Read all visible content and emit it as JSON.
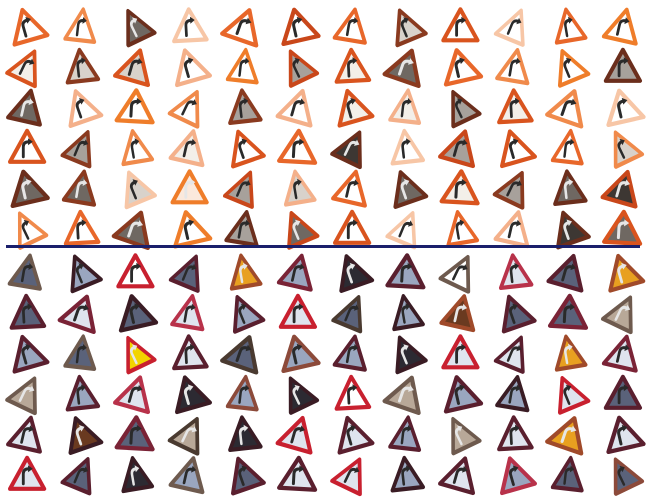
{
  "figure": {
    "columns": 12,
    "rows_per_panel": 6,
    "sign_symbol": "curve-right-icon",
    "divider_color": "#1a1f6b"
  },
  "top_panel": {
    "palette": {
      "border": [
        "#e8672a",
        "#d9541e",
        "#f08a4b",
        "#f4b08a",
        "#c9471a",
        "#8a3a1f",
        "#6b2e1c",
        "#f7c6a6",
        "#ef7d2a"
      ],
      "fill": [
        "#ffffff",
        "#f3efe9",
        "#d8d2cb",
        "#a7a19b",
        "#6f6862",
        "#3d3733",
        "#fbe9dc"
      ]
    },
    "cells": [
      [
        [
          0,
          0
        ],
        [
          2,
          0
        ],
        [
          6,
          4
        ],
        [
          7,
          0
        ],
        [
          0,
          0
        ],
        [
          4,
          0
        ],
        [
          0,
          0
        ],
        [
          5,
          2
        ],
        [
          1,
          0
        ],
        [
          7,
          0
        ],
        [
          0,
          0
        ],
        [
          8,
          0
        ]
      ],
      [
        [
          1,
          1
        ],
        [
          5,
          2
        ],
        [
          1,
          2
        ],
        [
          3,
          0
        ],
        [
          8,
          0
        ],
        [
          4,
          3
        ],
        [
          1,
          1
        ],
        [
          5,
          4
        ],
        [
          0,
          0
        ],
        [
          2,
          0
        ],
        [
          8,
          0
        ],
        [
          6,
          3
        ]
      ],
      [
        [
          6,
          4
        ],
        [
          3,
          0
        ],
        [
          8,
          0
        ],
        [
          2,
          0
        ],
        [
          5,
          3
        ],
        [
          3,
          0
        ],
        [
          1,
          1
        ],
        [
          3,
          1
        ],
        [
          6,
          3
        ],
        [
          1,
          1
        ],
        [
          2,
          0
        ],
        [
          7,
          0
        ]
      ],
      [
        [
          1,
          0
        ],
        [
          5,
          3
        ],
        [
          2,
          0
        ],
        [
          3,
          1
        ],
        [
          1,
          0
        ],
        [
          0,
          0
        ],
        [
          6,
          5
        ],
        [
          7,
          0
        ],
        [
          4,
          3
        ],
        [
          1,
          0
        ],
        [
          0,
          0
        ],
        [
          2,
          2
        ]
      ],
      [
        [
          6,
          4
        ],
        [
          5,
          4
        ],
        [
          7,
          2
        ],
        [
          8,
          6
        ],
        [
          4,
          3
        ],
        [
          3,
          2
        ],
        [
          0,
          0
        ],
        [
          6,
          4
        ],
        [
          1,
          1
        ],
        [
          5,
          3
        ],
        [
          6,
          4
        ],
        [
          4,
          5
        ]
      ],
      [
        [
          2,
          0
        ],
        [
          0,
          0
        ],
        [
          5,
          4
        ],
        [
          8,
          0
        ],
        [
          6,
          3
        ],
        [
          4,
          4
        ],
        [
          1,
          0
        ],
        [
          7,
          0
        ],
        [
          0,
          0
        ],
        [
          3,
          0
        ],
        [
          6,
          5
        ],
        [
          1,
          4
        ]
      ]
    ]
  },
  "bottom_panel": {
    "palette": {
      "border": [
        "#5a1f2e",
        "#7a2336",
        "#c8202f",
        "#3a1c24",
        "#8c4a3a",
        "#a04a2a",
        "#b8324a",
        "#4a3a30",
        "#6e5a4e"
      ],
      "fill": [
        "#ffffff",
        "#dfe4ee",
        "#9aa6bf",
        "#5a627a",
        "#2c2a32",
        "#e8a020",
        "#f2d400",
        "#b8a898",
        "#6a3a20"
      ]
    },
    "cells": [
      [
        [
          8,
          3
        ],
        [
          3,
          2
        ],
        [
          2,
          0
        ],
        [
          0,
          3
        ],
        [
          5,
          5
        ],
        [
          1,
          2
        ],
        [
          3,
          4
        ],
        [
          0,
          2
        ],
        [
          8,
          0
        ],
        [
          6,
          1
        ],
        [
          0,
          3
        ],
        [
          5,
          5
        ]
      ],
      [
        [
          0,
          3
        ],
        [
          1,
          1
        ],
        [
          3,
          3
        ],
        [
          6,
          1
        ],
        [
          0,
          2
        ],
        [
          2,
          1
        ],
        [
          7,
          3
        ],
        [
          3,
          2
        ],
        [
          5,
          8
        ],
        [
          0,
          3
        ],
        [
          1,
          3
        ],
        [
          8,
          7
        ]
      ],
      [
        [
          0,
          2
        ],
        [
          8,
          3
        ],
        [
          2,
          6
        ],
        [
          0,
          1
        ],
        [
          7,
          3
        ],
        [
          4,
          2
        ],
        [
          0,
          2
        ],
        [
          3,
          4
        ],
        [
          2,
          1
        ],
        [
          0,
          1
        ],
        [
          5,
          5
        ],
        [
          1,
          1
        ]
      ],
      [
        [
          8,
          7
        ],
        [
          0,
          2
        ],
        [
          6,
          1
        ],
        [
          3,
          4
        ],
        [
          4,
          2
        ],
        [
          3,
          4
        ],
        [
          2,
          0
        ],
        [
          8,
          7
        ],
        [
          0,
          2
        ],
        [
          3,
          2
        ],
        [
          2,
          1
        ],
        [
          0,
          3
        ]
      ],
      [
        [
          0,
          1
        ],
        [
          3,
          8
        ],
        [
          1,
          3
        ],
        [
          7,
          7
        ],
        [
          3,
          4
        ],
        [
          2,
          1
        ],
        [
          0,
          1
        ],
        [
          0,
          2
        ],
        [
          8,
          7
        ],
        [
          0,
          1
        ],
        [
          5,
          5
        ],
        [
          0,
          1
        ]
      ],
      [
        [
          2,
          1
        ],
        [
          0,
          3
        ],
        [
          3,
          4
        ],
        [
          8,
          2
        ],
        [
          0,
          3
        ],
        [
          0,
          1
        ],
        [
          2,
          1
        ],
        [
          3,
          2
        ],
        [
          0,
          1
        ],
        [
          6,
          2
        ],
        [
          0,
          3
        ],
        [
          4,
          3
        ]
      ]
    ]
  }
}
